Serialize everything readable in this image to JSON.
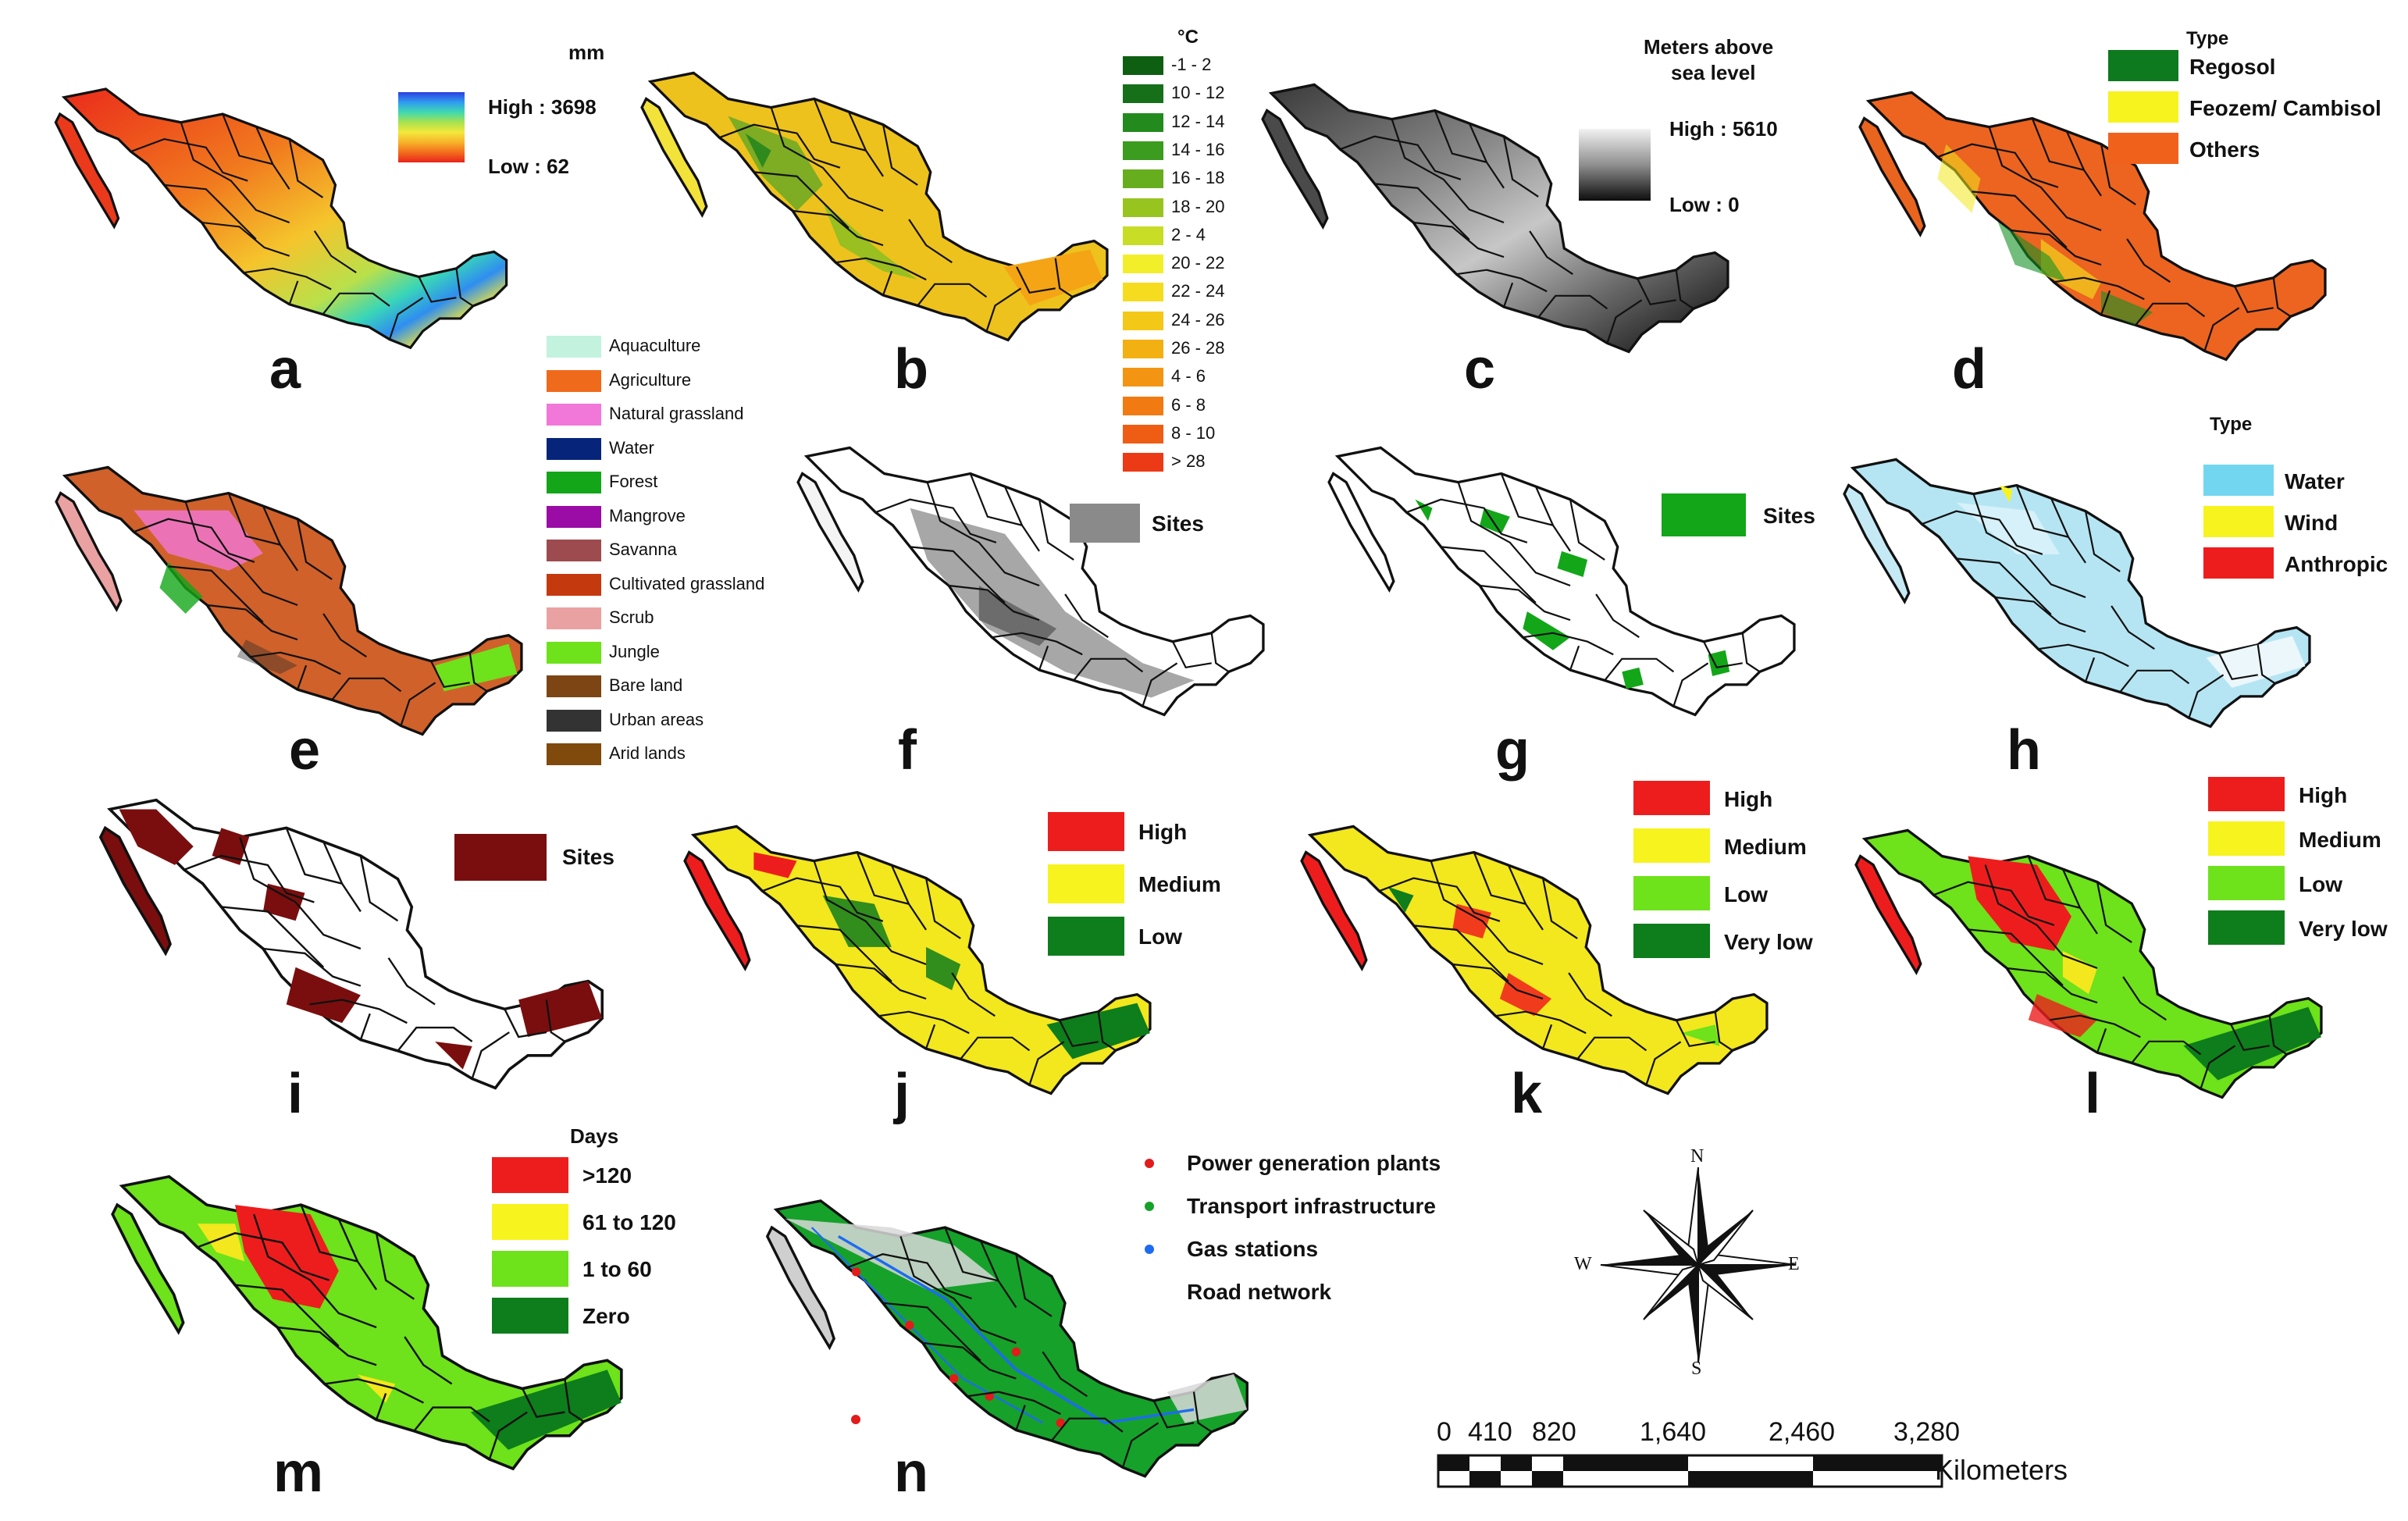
{
  "colors": {
    "outline": "#111111",
    "rainfall_ramp": [
      "#e8231b",
      "#f36d1d",
      "#f7b32a",
      "#f3e83c",
      "#a8e24f",
      "#3fd9b0",
      "#2f9bf0",
      "#2e3ee0"
    ],
    "elevation_ramp": [
      "#f2f2f2",
      "#8f8f8f",
      "#0d0d0d"
    ]
  },
  "panels": {
    "a": {
      "letter": "a",
      "legend_title": "mm",
      "high": "High : 3698",
      "low": "Low : 62"
    },
    "b": {
      "letter": "b",
      "legend_title": "°C",
      "classes": [
        {
          "label": "-1 - 2",
          "color": "#0e5f12"
        },
        {
          "label": "10 - 12",
          "color": "#157019"
        },
        {
          "label": "12 - 14",
          "color": "#238a1d"
        },
        {
          "label": "14 - 16",
          "color": "#3b9c1f"
        },
        {
          "label": "16 - 18",
          "color": "#67ae1f"
        },
        {
          "label": "18 - 20",
          "color": "#98c41f"
        },
        {
          "label": "2 - 4",
          "color": "#c7dd26"
        },
        {
          "label": "20 - 22",
          "color": "#f2ef2a"
        },
        {
          "label": "22 - 24",
          "color": "#f6dc1f"
        },
        {
          "label": "24 - 26",
          "color": "#f4c817"
        },
        {
          "label": "26 - 28",
          "color": "#f3b013"
        },
        {
          "label": "4 - 6",
          "color": "#f39512"
        },
        {
          "label": "6 - 8",
          "color": "#f27a12"
        },
        {
          "label": "8 - 10",
          "color": "#ef5d14"
        },
        {
          "label": "> 28",
          "color": "#ec3a17"
        }
      ]
    },
    "c": {
      "letter": "c",
      "legend_title_1": "Meters above",
      "legend_title_2": "sea level",
      "high": "High : 5610",
      "low": "Low : 0"
    },
    "d": {
      "letter": "d",
      "legend_title": "Type",
      "classes": [
        {
          "label": "Regosol",
          "color": "#0d7a1f"
        },
        {
          "label": "Feozem/ Cambisol",
          "color": "#f7f31e"
        },
        {
          "label": "Others",
          "color": "#f0621c"
        }
      ]
    },
    "e": {
      "letter": "e",
      "classes": [
        {
          "label": "Aquaculture",
          "color": "#c3f2de"
        },
        {
          "label": "Agriculture",
          "color": "#f06a1c"
        },
        {
          "label": "Natural grassland",
          "color": "#f178d8"
        },
        {
          "label": "Water",
          "color": "#06257a"
        },
        {
          "label": "Forest",
          "color": "#13a619"
        },
        {
          "label": "Mangrove",
          "color": "#9b0ba6"
        },
        {
          "label": "Savanna",
          "color": "#9d4b4f"
        },
        {
          "label": "Cultivated grassland",
          "color": "#c5390f"
        },
        {
          "label": "Scrub",
          "color": "#eaa1a1"
        },
        {
          "label": "Jungle",
          "color": "#6ee21a"
        },
        {
          "label": "Bare land",
          "color": "#7d4513"
        },
        {
          "label": "Urban areas",
          "color": "#333333"
        },
        {
          "label": "Arid lands",
          "color": "#7f4a0c"
        }
      ]
    },
    "f": {
      "letter": "f",
      "legend_label": "Sites",
      "legend_color": "#8a8a8a"
    },
    "g": {
      "letter": "g",
      "legend_label": "Sites",
      "legend_color": "#13a619"
    },
    "h": {
      "letter": "h",
      "legend_title": "Type",
      "classes": [
        {
          "label": "Water",
          "color": "#73d6f0"
        },
        {
          "label": "Wind",
          "color": "#f7f31e"
        },
        {
          "label": "Anthropic",
          "color": "#ee1d1d"
        }
      ]
    },
    "i": {
      "letter": "i",
      "legend_label": "Sites",
      "legend_color": "#7a0e0e"
    },
    "j": {
      "letter": "j",
      "classes": [
        {
          "label": "High",
          "color": "#ee1d1d"
        },
        {
          "label": "Medium",
          "color": "#f7f31e"
        },
        {
          "label": "Low",
          "color": "#0e7d1c"
        }
      ]
    },
    "k": {
      "letter": "k",
      "classes": [
        {
          "label": "High",
          "color": "#ee1d1d"
        },
        {
          "label": "Medium",
          "color": "#f7f31e"
        },
        {
          "label": "Low",
          "color": "#6ee21a"
        },
        {
          "label": "Very low",
          "color": "#0e7d1c"
        }
      ]
    },
    "l": {
      "letter": "l",
      "classes": [
        {
          "label": "High",
          "color": "#ee1d1d"
        },
        {
          "label": "Medium",
          "color": "#f7f31e"
        },
        {
          "label": "Low",
          "color": "#6ee21a"
        },
        {
          "label": "Very low",
          "color": "#0e7d1c"
        }
      ]
    },
    "m": {
      "letter": "m",
      "legend_title": "Days",
      "classes": [
        {
          "label": ">120",
          "color": "#ee1d1d"
        },
        {
          "label": "61 to 120",
          "color": "#f7f31e"
        },
        {
          "label": "1 to 60",
          "color": "#6ee21a"
        },
        {
          "label": "Zero",
          "color": "#0e7d1c"
        }
      ]
    },
    "n": {
      "letter": "n",
      "classes": [
        {
          "label": "Power generation plants",
          "color": "#e21b1b"
        },
        {
          "label": "Transport infrastructure",
          "color": "#16a12a"
        },
        {
          "label": "Gas stations",
          "color": "#1d6bf0"
        },
        {
          "label": "Road network",
          "color": ""
        }
      ]
    }
  },
  "compass": {
    "n": "N",
    "s": "S",
    "e": "E",
    "w": "W"
  },
  "scale_bar": {
    "ticks": [
      "0",
      "410",
      "820",
      "1,640",
      "2,460",
      "3,280"
    ],
    "unit": "Kilometers"
  }
}
